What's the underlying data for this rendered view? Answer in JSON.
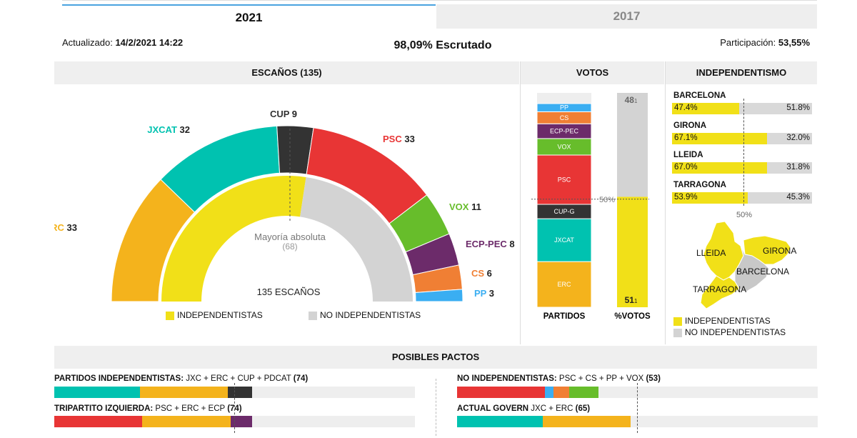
{
  "tabs": [
    {
      "label": "2021",
      "active": true
    },
    {
      "label": "2017",
      "active": false
    }
  ],
  "status": {
    "updated_label": "Actualizado:",
    "updated_value": "14/2/2021 14:22",
    "scrutinized": "98,09% Escrutado",
    "participation_label": "Participación:",
    "participation_value": "53,55%"
  },
  "sections": {
    "escanos": "ESCAÑOS (135)",
    "votos": "VOTOS",
    "independentismo": "INDEPENDENTISMO",
    "pactos": "POSIBLES PACTOS"
  },
  "colors": {
    "ERC": "#f4b31c",
    "JXCAT": "#00c2b0",
    "CUP": "#333333",
    "PSC": "#e83535",
    "VOX": "#67bd2b",
    "ECP-PEC": "#6c2b6a",
    "CS": "#f07f34",
    "PP": "#3aaef2",
    "independentistas": "#f1e018",
    "no_independentistas": "#d3d3d3"
  },
  "chart_data": [
    {
      "type": "pie",
      "title": "ESCAÑOS (135)",
      "subtype": "hemicycle",
      "categories": [
        "ERC",
        "JXCAT",
        "CUP",
        "PSC",
        "VOX",
        "ECP-PEC",
        "CS",
        "PP"
      ],
      "values": [
        33,
        32,
        9,
        33,
        11,
        8,
        6,
        3
      ],
      "labels": [
        {
          "name": "ERC",
          "value": "33"
        },
        {
          "name": "JXCAT",
          "value": "32"
        },
        {
          "name": "CUP",
          "value": "9"
        },
        {
          "name": "PSC",
          "value": "33"
        },
        {
          "name": "VOX",
          "value": "11"
        },
        {
          "name": "ECP-PEC",
          "value": "8"
        },
        {
          "name": "CS",
          "value": "6"
        },
        {
          "name": "PP",
          "value": "3"
        }
      ],
      "inner_ring": {
        "independentistas": 74,
        "no_independentistas": 61
      },
      "majority_label": "Mayoría absoluta",
      "majority_value": "(68)",
      "total_label": "135 ESCAÑOS",
      "legend": [
        "INDEPENDENTISTAS",
        "NO INDEPENDENTISTAS"
      ]
    },
    {
      "type": "bar",
      "subtype": "stacked",
      "title": "VOTOS",
      "bars": [
        {
          "label": "PARTIDOS",
          "segments": [
            {
              "name": "ERC",
              "value": 21.3
            },
            {
              "name": "JXCAT",
              "value": 20.0
            },
            {
              "name": "CUP-G",
              "value": 6.7
            },
            {
              "name": "PSC",
              "value": 23.0
            },
            {
              "name": "VOX",
              "value": 7.7
            },
            {
              "name": "ECP-PEC",
              "value": 6.9
            },
            {
              "name": "CS",
              "value": 5.6
            },
            {
              "name": "PP",
              "value": 3.8
            }
          ]
        },
        {
          "label": "%VOTOS",
          "segments": [
            {
              "name": "independentistas",
              "value": 51.1,
              "int": "51",
              "dec": "1"
            },
            {
              "name": "no_independentistas",
              "value": 48.1,
              "int": "48",
              "dec": "1"
            }
          ]
        }
      ],
      "reference_label": "50%",
      "ylim": [
        0,
        100
      ]
    },
    {
      "type": "bar",
      "subtype": "stacked-horizontal",
      "title": "INDEPENDENTISMO",
      "categories": [
        "BARCELONA",
        "GIRONA",
        "LLEIDA",
        "TARRAGONA"
      ],
      "series": [
        {
          "name": "independentistas",
          "values": [
            47.4,
            67.1,
            67.0,
            53.9
          ],
          "labels": [
            "47.4%",
            "67.1%",
            "67.0%",
            "53.9%"
          ]
        },
        {
          "name": "no_independentistas",
          "values": [
            51.8,
            32.0,
            31.8,
            45.3
          ],
          "labels": [
            "51.8%",
            "32.0%",
            "31.8%",
            "45.3%"
          ]
        }
      ],
      "reference_label": "50%",
      "map_labels": [
        "LLEIDA",
        "GIRONA",
        "BARCELONA",
        "TARRAGONA"
      ],
      "legend": [
        "INDEPENDENTISTAS",
        "NO INDEPENDENTISTAS"
      ]
    },
    {
      "type": "bar",
      "subtype": "stacked-horizontal",
      "title": "POSIBLES PACTOS",
      "total_seats": 135,
      "pacts": [
        {
          "bold": "PARTIDOS INDEPENDENTISTAS:",
          "text": " JXC + ERC + CUP + PDCAT ",
          "total": "(74)",
          "segments": [
            {
              "name": "JXCAT",
              "value": 32
            },
            {
              "name": "ERC",
              "value": 33
            },
            {
              "name": "CUP",
              "value": 9
            }
          ]
        },
        {
          "bold": "TRIPARTITO IZQUIERDA:",
          "text": " PSC + ERC + ECP ",
          "total": "(74)",
          "segments": [
            {
              "name": "PSC",
              "value": 33
            },
            {
              "name": "ERC",
              "value": 33
            },
            {
              "name": "ECP-PEC",
              "value": 8
            }
          ]
        },
        {
          "bold": "NO INDEPENDENTISTAS:",
          "text": " PSC + CS + PP + VOX ",
          "total": "(53)",
          "segments": [
            {
              "name": "PSC",
              "value": 33
            },
            {
              "name": "PP",
              "value": 3
            },
            {
              "name": "CS",
              "value": 6
            },
            {
              "name": "VOX",
              "value": 11
            }
          ]
        },
        {
          "bold": "ACTUAL GOVERN",
          "text": " JXC + ERC ",
          "total": "(65)",
          "segments": [
            {
              "name": "JXCAT",
              "value": 32
            },
            {
              "name": "ERC",
              "value": 33
            }
          ]
        }
      ]
    }
  ]
}
